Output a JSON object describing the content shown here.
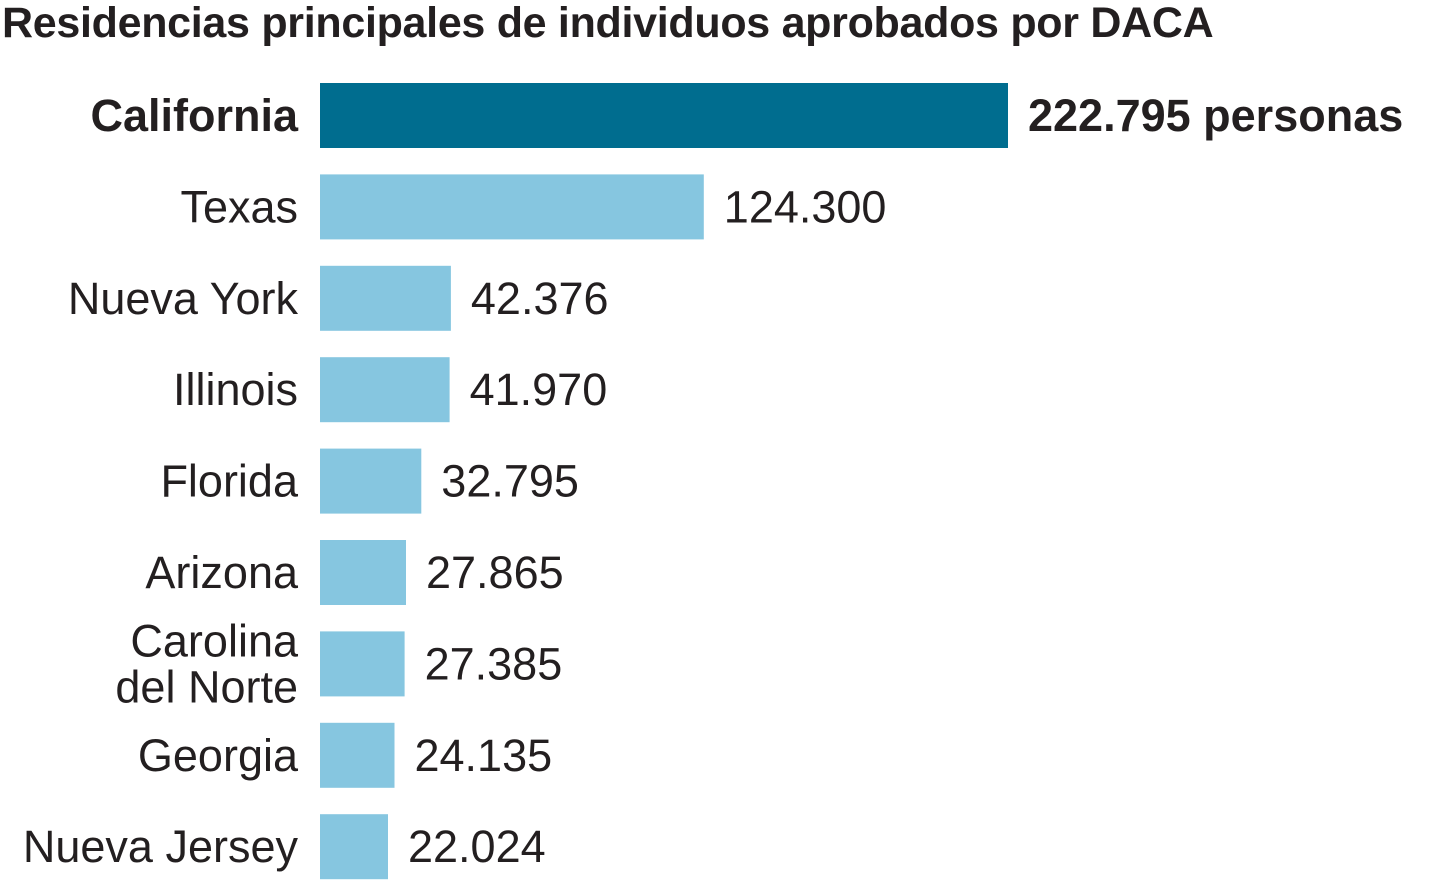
{
  "chart_data": {
    "type": "bar",
    "orientation": "horizontal",
    "title": "Residencias principales de individuos aprobados por DACA",
    "categories": [
      "California",
      "Texas",
      "Nueva York",
      "Illinois",
      "Florida",
      "Arizona",
      "Carolina del Norte",
      "Georgia",
      "Nueva Jersey"
    ],
    "category_lines": [
      [
        "California"
      ],
      [
        "Texas"
      ],
      [
        "Nueva York"
      ],
      [
        "Illinois"
      ],
      [
        "Florida"
      ],
      [
        "Arizona"
      ],
      [
        "Carolina",
        "del Norte"
      ],
      [
        "Georgia"
      ],
      [
        "Nueva Jersey"
      ]
    ],
    "values": [
      222795,
      124300,
      42376,
      41970,
      32795,
      27865,
      27385,
      24135,
      22024
    ],
    "value_labels": [
      "222.795 personas",
      "124.300",
      "42.376",
      "41.970",
      "32.795",
      "27.865",
      "27.385",
      "24.135",
      "22.024"
    ],
    "highlight_index": 0,
    "highlight_color": "#006d8f",
    "bar_color": "#86c6e0",
    "xlim": [
      0,
      222795
    ],
    "grid": false,
    "legend": "none"
  }
}
